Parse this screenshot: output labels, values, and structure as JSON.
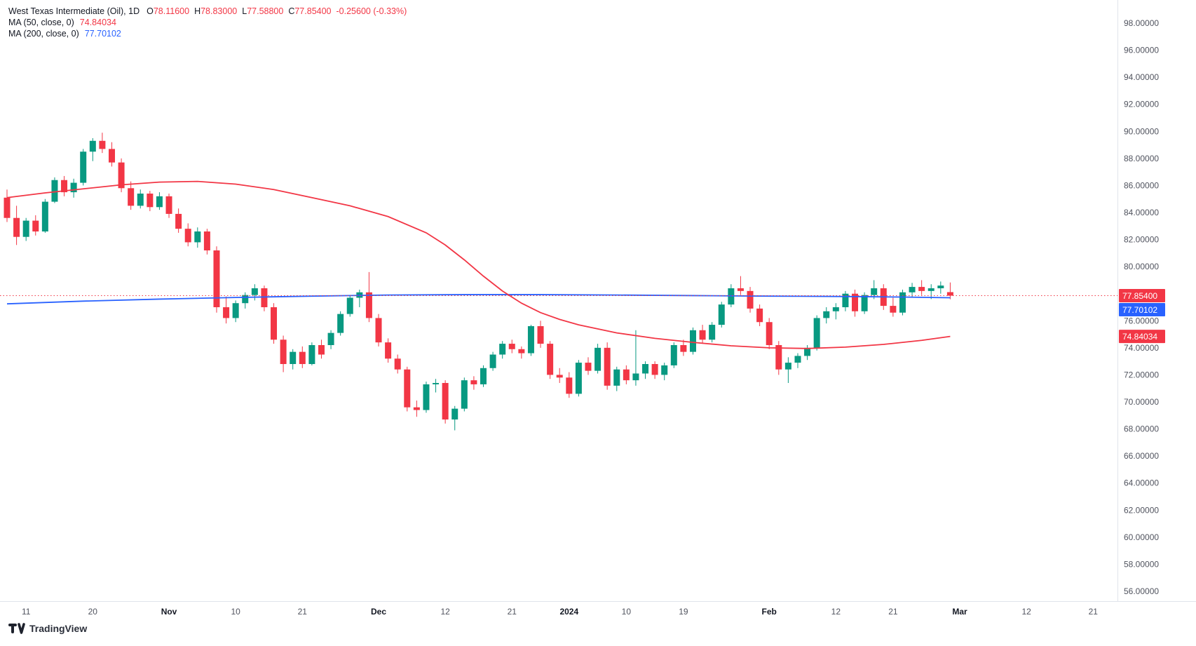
{
  "header": {
    "symbol_title": "West Texas Intermediate (Oil), 1D",
    "ohlc": {
      "o_label": "O",
      "o": "78.11600",
      "h_label": "H",
      "h": "78.83000",
      "l_label": "L",
      "l": "77.58800",
      "c_label": "C",
      "c": "77.85400",
      "change": "-0.25600 (-0.33%)"
    },
    "ma50": {
      "label": "MA (50, close, 0)",
      "value": "74.84034"
    },
    "ma200": {
      "label": "MA (200, close, 0)",
      "value": "77.70102"
    }
  },
  "footer": {
    "brand": "TradingView"
  },
  "colors": {
    "up": "#089981",
    "down": "#f23645",
    "ma50": "#f23645",
    "ma200": "#2962ff",
    "current_price_line": "#f23645",
    "axis_text": "#50535e",
    "axis_text_strong": "#131722",
    "separator": "#e0e3eb",
    "badge_text": "#ffffff"
  },
  "chart_data": {
    "type": "candlestick",
    "title": "West Texas Intermediate (Oil), 1D",
    "symbol": "West Texas Intermediate (Oil)",
    "interval": "1D",
    "legend_ohlc": {
      "open": 78.116,
      "high": 78.83,
      "low": 77.588,
      "close": 77.854,
      "change": -0.256,
      "change_pct": -0.33
    },
    "y_axis": {
      "min": 56,
      "max": 98,
      "step": 2,
      "labels": [
        "98.00000",
        "96.00000",
        "94.00000",
        "92.00000",
        "90.00000",
        "88.00000",
        "86.00000",
        "84.00000",
        "82.00000",
        "80.00000",
        "78.00000",
        "76.00000",
        "74.00000",
        "72.00000",
        "70.00000",
        "68.00000",
        "66.00000",
        "64.00000",
        "62.00000",
        "60.00000",
        "58.00000",
        "56.00000"
      ]
    },
    "x_axis": {
      "labels": [
        {
          "i": 2,
          "t": "11"
        },
        {
          "i": 9,
          "t": "20"
        },
        {
          "i": 17,
          "t": "Nov",
          "b": true
        },
        {
          "i": 24,
          "t": "10"
        },
        {
          "i": 31,
          "t": "21"
        },
        {
          "i": 39,
          "t": "Dec",
          "b": true
        },
        {
          "i": 46,
          "t": "12"
        },
        {
          "i": 53,
          "t": "21"
        },
        {
          "i": 59,
          "t": "2024",
          "b": true
        },
        {
          "i": 65,
          "t": "10"
        },
        {
          "i": 71,
          "t": "19"
        },
        {
          "i": 80,
          "t": "Feb",
          "b": true
        },
        {
          "i": 87,
          "t": "12"
        },
        {
          "i": 93,
          "t": "21"
        },
        {
          "i": 100,
          "t": "Mar",
          "b": true
        },
        {
          "i": 107,
          "t": "12"
        },
        {
          "i": 114,
          "t": "21"
        }
      ]
    },
    "current_price": {
      "value": 77.854,
      "label": "77.85400"
    },
    "ma50": {
      "name": "MA (50, close, 0)",
      "value": 74.84034,
      "value_label": "74.84034",
      "points": [
        [
          0,
          85.1
        ],
        [
          4,
          85.45
        ],
        [
          8,
          85.75
        ],
        [
          12,
          86.05
        ],
        [
          16,
          86.25
        ],
        [
          20,
          86.3
        ],
        [
          24,
          86.1
        ],
        [
          28,
          85.7
        ],
        [
          32,
          85.1
        ],
        [
          36,
          84.5
        ],
        [
          40,
          83.7
        ],
        [
          44,
          82.5
        ],
        [
          46,
          81.6
        ],
        [
          48,
          80.5
        ],
        [
          50,
          79.3
        ],
        [
          52,
          78.2
        ],
        [
          54,
          77.3
        ],
        [
          56,
          76.6
        ],
        [
          58,
          76.1
        ],
        [
          60,
          75.7
        ],
        [
          64,
          75.1
        ],
        [
          68,
          74.7
        ],
        [
          72,
          74.4
        ],
        [
          76,
          74.15
        ],
        [
          80,
          74.0
        ],
        [
          84,
          73.95
        ],
        [
          88,
          74.05
        ],
        [
          92,
          74.25
        ],
        [
          96,
          74.55
        ],
        [
          99,
          74.84
        ]
      ]
    },
    "ma200": {
      "name": "MA (200, close, 0)",
      "value": 77.70102,
      "value_label": "77.70102",
      "points": [
        [
          0,
          77.25
        ],
        [
          8,
          77.45
        ],
        [
          16,
          77.6
        ],
        [
          24,
          77.72
        ],
        [
          32,
          77.82
        ],
        [
          40,
          77.9
        ],
        [
          48,
          77.93
        ],
        [
          56,
          77.93
        ],
        [
          64,
          77.9
        ],
        [
          72,
          77.86
        ],
        [
          80,
          77.82
        ],
        [
          86,
          77.8
        ],
        [
          90,
          77.78
        ],
        [
          94,
          77.75
        ],
        [
          99,
          77.701
        ]
      ]
    },
    "candles": [
      [
        85.1,
        85.7,
        83.3,
        83.6
      ],
      [
        83.6,
        84.5,
        81.6,
        82.2
      ],
      [
        82.2,
        83.6,
        81.9,
        83.4
      ],
      [
        83.4,
        83.8,
        82.3,
        82.6
      ],
      [
        82.6,
        85.0,
        82.5,
        84.8
      ],
      [
        84.8,
        86.6,
        84.7,
        86.4
      ],
      [
        86.4,
        86.7,
        85.2,
        85.5
      ],
      [
        85.5,
        86.5,
        85.1,
        86.2
      ],
      [
        86.2,
        88.7,
        86.0,
        88.5
      ],
      [
        88.5,
        89.5,
        87.8,
        89.3
      ],
      [
        89.3,
        89.9,
        88.4,
        88.7
      ],
      [
        88.7,
        89.2,
        87.4,
        87.7
      ],
      [
        87.7,
        88.0,
        85.5,
        85.8
      ],
      [
        85.8,
        86.3,
        84.2,
        84.5
      ],
      [
        84.5,
        85.7,
        84.3,
        85.4
      ],
      [
        85.4,
        85.6,
        84.1,
        84.4
      ],
      [
        84.4,
        85.5,
        84.2,
        85.2
      ],
      [
        85.2,
        85.4,
        83.6,
        83.9
      ],
      [
        83.9,
        84.3,
        82.5,
        82.8
      ],
      [
        82.8,
        83.2,
        81.5,
        81.8
      ],
      [
        81.8,
        82.9,
        81.4,
        82.6
      ],
      [
        82.6,
        82.8,
        80.9,
        81.2
      ],
      [
        81.2,
        81.5,
        76.6,
        77.0
      ],
      [
        77.0,
        77.8,
        75.8,
        76.2
      ],
      [
        76.2,
        77.5,
        75.9,
        77.3
      ],
      [
        77.3,
        78.1,
        76.9,
        77.9
      ],
      [
        77.9,
        78.7,
        77.5,
        78.4
      ],
      [
        78.4,
        78.6,
        76.7,
        77.0
      ],
      [
        77.0,
        77.3,
        74.3,
        74.6
      ],
      [
        74.6,
        74.9,
        72.2,
        72.8
      ],
      [
        72.8,
        73.9,
        72.4,
        73.7
      ],
      [
        73.7,
        74.1,
        72.5,
        72.8
      ],
      [
        72.8,
        74.4,
        72.7,
        74.2
      ],
      [
        74.2,
        74.6,
        73.2,
        73.5
      ],
      [
        74.2,
        75.3,
        73.9,
        75.1
      ],
      [
        75.1,
        76.7,
        74.9,
        76.5
      ],
      [
        76.5,
        77.9,
        76.3,
        77.7
      ],
      [
        77.7,
        78.3,
        77.0,
        78.1
      ],
      [
        78.1,
        79.6,
        75.9,
        76.2
      ],
      [
        76.2,
        76.5,
        74.1,
        74.4
      ],
      [
        74.4,
        74.7,
        72.9,
        73.2
      ],
      [
        73.2,
        73.5,
        72.1,
        72.4
      ],
      [
        72.4,
        72.6,
        69.3,
        69.6
      ],
      [
        69.6,
        70.1,
        68.9,
        69.4
      ],
      [
        69.4,
        71.5,
        69.2,
        71.3
      ],
      [
        71.3,
        71.7,
        70.7,
        71.4
      ],
      [
        71.4,
        71.6,
        68.4,
        68.7
      ],
      [
        68.7,
        69.7,
        67.9,
        69.5
      ],
      [
        69.5,
        71.8,
        69.3,
        71.6
      ],
      [
        71.6,
        71.9,
        70.9,
        71.3
      ],
      [
        71.3,
        72.7,
        71.1,
        72.5
      ],
      [
        72.5,
        73.7,
        72.3,
        73.5
      ],
      [
        73.5,
        74.5,
        73.2,
        74.3
      ],
      [
        74.3,
        74.6,
        73.6,
        73.9
      ],
      [
        73.9,
        74.1,
        73.2,
        73.6
      ],
      [
        73.6,
        75.7,
        73.4,
        75.6
      ],
      [
        75.6,
        76.0,
        74.0,
        74.3
      ],
      [
        74.3,
        74.5,
        71.7,
        72.0
      ],
      [
        72.0,
        72.5,
        71.4,
        71.8
      ],
      [
        71.8,
        72.2,
        70.3,
        70.6
      ],
      [
        70.6,
        73.1,
        70.4,
        72.9
      ],
      [
        72.9,
        73.3,
        72.0,
        72.3
      ],
      [
        72.3,
        74.3,
        72.1,
        74.0
      ],
      [
        74.0,
        74.4,
        70.9,
        71.2
      ],
      [
        71.2,
        72.6,
        70.8,
        72.4
      ],
      [
        72.4,
        72.7,
        71.3,
        71.6
      ],
      [
        71.6,
        75.3,
        71.2,
        72.1
      ],
      [
        72.1,
        73.0,
        71.7,
        72.8
      ],
      [
        72.8,
        73.0,
        71.7,
        72.0
      ],
      [
        72.0,
        72.9,
        71.6,
        72.7
      ],
      [
        72.7,
        74.4,
        72.5,
        74.2
      ],
      [
        74.2,
        74.6,
        73.4,
        73.7
      ],
      [
        73.7,
        75.5,
        73.5,
        75.3
      ],
      [
        75.3,
        75.7,
        74.3,
        74.6
      ],
      [
        74.6,
        75.9,
        74.4,
        75.7
      ],
      [
        75.7,
        77.4,
        75.5,
        77.2
      ],
      [
        77.2,
        78.7,
        77.0,
        78.4
      ],
      [
        78.4,
        79.3,
        77.9,
        78.2
      ],
      [
        78.2,
        78.5,
        76.6,
        76.9
      ],
      [
        76.9,
        77.2,
        75.6,
        75.9
      ],
      [
        75.9,
        76.2,
        73.9,
        74.2
      ],
      [
        74.2,
        74.5,
        72.0,
        72.4
      ],
      [
        72.4,
        73.3,
        71.4,
        72.9
      ],
      [
        72.9,
        73.6,
        72.5,
        73.4
      ],
      [
        73.4,
        74.2,
        73.1,
        74.0
      ],
      [
        74.0,
        76.4,
        73.8,
        76.2
      ],
      [
        76.2,
        77.0,
        75.8,
        76.7
      ],
      [
        76.7,
        77.3,
        76.1,
        77.0
      ],
      [
        77.0,
        78.2,
        76.7,
        78.0
      ],
      [
        78.0,
        78.3,
        76.3,
        76.7
      ],
      [
        76.7,
        78.1,
        76.5,
        77.9
      ],
      [
        77.9,
        79.0,
        77.6,
        78.4
      ],
      [
        78.4,
        78.7,
        76.8,
        77.1
      ],
      [
        77.1,
        77.7,
        76.3,
        76.6
      ],
      [
        76.6,
        78.3,
        76.4,
        78.1
      ],
      [
        78.1,
        78.8,
        77.7,
        78.5
      ],
      [
        78.5,
        79.0,
        77.9,
        78.2
      ],
      [
        78.2,
        78.7,
        77.6,
        78.4
      ],
      [
        78.4,
        78.9,
        78.0,
        78.6
      ],
      [
        78.116,
        78.83,
        77.588,
        77.854
      ]
    ]
  }
}
